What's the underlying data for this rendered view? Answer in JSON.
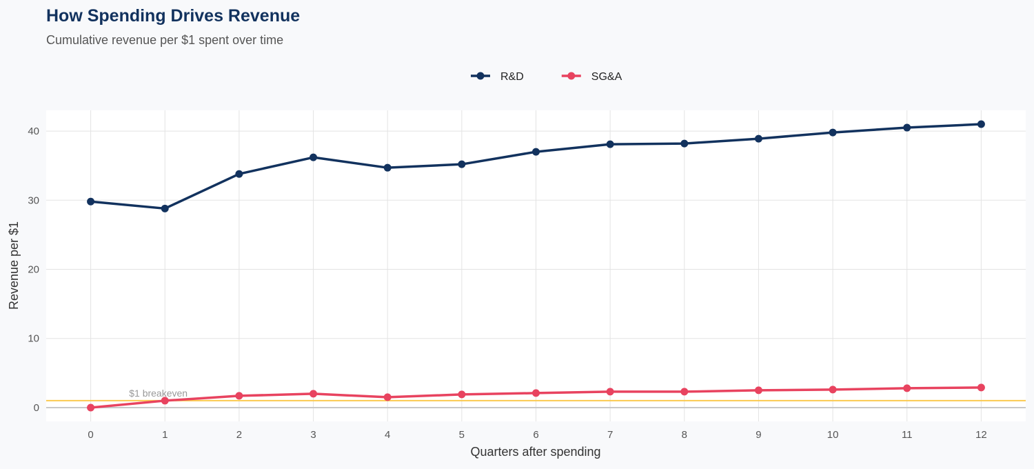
{
  "chart_data": {
    "type": "line",
    "title": "How Spending Drives Revenue",
    "subtitle": "Cumulative revenue per $1 spent over time",
    "xlabel": "Quarters after spending",
    "ylabel": "Revenue per $1",
    "x": [
      0,
      1,
      2,
      3,
      4,
      5,
      6,
      7,
      8,
      9,
      10,
      11,
      12
    ],
    "xlim": [
      -0.6,
      12.6
    ],
    "ylim": [
      -2.0,
      43.0
    ],
    "yticks": [
      0,
      10,
      20,
      30,
      40
    ],
    "grid": true,
    "legend_position": "top",
    "series": [
      {
        "name": "R&D",
        "color": "#12325e",
        "values": [
          29.8,
          28.8,
          33.8,
          36.2,
          34.7,
          35.2,
          37.0,
          38.1,
          38.2,
          38.9,
          39.8,
          40.5,
          41.0
        ]
      },
      {
        "name": "SG&A",
        "color": "#e8435f",
        "values": [
          0.0,
          1.0,
          1.7,
          2.0,
          1.5,
          1.9,
          2.1,
          2.3,
          2.3,
          2.5,
          2.6,
          2.8,
          2.9
        ]
      }
    ],
    "reference_line": {
      "y": 1,
      "label": "$1 breakeven",
      "color": "#fbc94e"
    },
    "title_color": "#12325e"
  }
}
